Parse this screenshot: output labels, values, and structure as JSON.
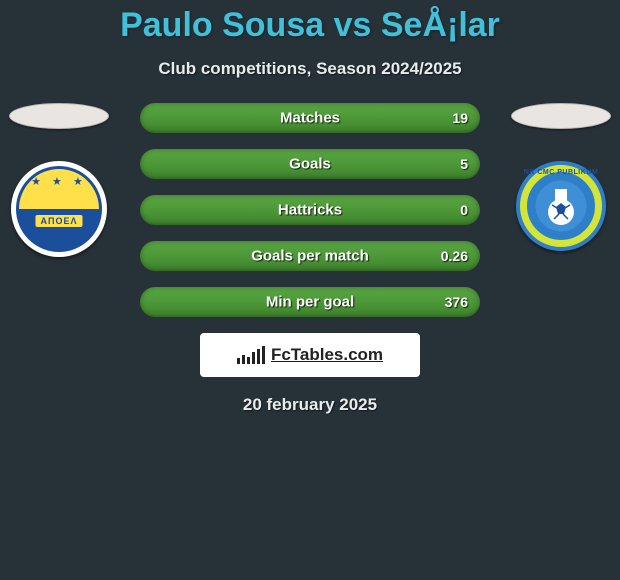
{
  "title": "Paulo Sousa vs SeÅ¡lar",
  "subtitle": "Club competitions, Season 2024/2025",
  "date": "20 february 2025",
  "brand": "FcTables.com",
  "left_club": {
    "banner": "ΑΠΟΕΛ",
    "star_row": "★ ★ ★"
  },
  "right_club": {
    "top_text": "NK CMC PUBLIKUM"
  },
  "stats": [
    {
      "label": "Matches",
      "right_value": "19",
      "fill_pct": 100
    },
    {
      "label": "Goals",
      "right_value": "5",
      "fill_pct": 100
    },
    {
      "label": "Hattricks",
      "right_value": "0",
      "fill_pct": 100
    },
    {
      "label": "Goals per match",
      "right_value": "0.26",
      "fill_pct": 100
    },
    {
      "label": "Min per goal",
      "right_value": "376",
      "fill_pct": 100
    }
  ],
  "style": {
    "background": "#273138",
    "title_color": "#3fc1da",
    "bar_bg": "#273138",
    "bar_fill_top": "#5aa743",
    "bar_fill_bottom": "#3d7f2c",
    "ellipse_bg": "#e9e5e2",
    "brand_bg": "#ffffff",
    "brand_bar_heights": [
      6,
      9,
      7,
      12,
      15,
      18
    ]
  }
}
